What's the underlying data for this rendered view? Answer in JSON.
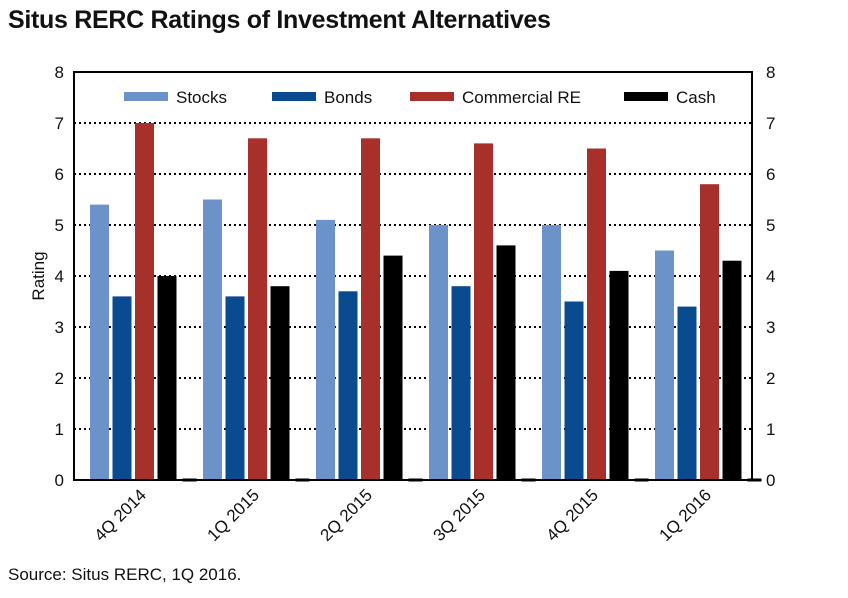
{
  "title": "Situs RERC Ratings of Investment Alternatives",
  "source": "Source: Situs RERC, 1Q 2016.",
  "colors": {
    "Stocks": "#6b93c9",
    "Bonds": "#0a4a8f",
    "Commercial RE": "#a8302a",
    "Cash": "#000000"
  },
  "chart_data": {
    "type": "bar",
    "title": "Situs RERC Ratings of Investment Alternatives",
    "xlabel": "",
    "ylabel": "Rating",
    "ylim": [
      0,
      8
    ],
    "yticks": [
      0,
      1,
      2,
      3,
      4,
      5,
      6,
      7,
      8
    ],
    "grid": "horizontal dotted",
    "legend_position": "top",
    "categories": [
      "4Q 2014",
      "1Q 2015",
      "2Q 2015",
      "3Q 2015",
      "4Q 2015",
      "1Q 2016"
    ],
    "series": [
      {
        "name": "Stocks",
        "values": [
          5.4,
          5.5,
          5.1,
          5.0,
          5.0,
          4.5
        ]
      },
      {
        "name": "Bonds",
        "values": [
          3.6,
          3.6,
          3.7,
          3.8,
          3.5,
          3.4
        ]
      },
      {
        "name": "Commercial RE",
        "values": [
          7.0,
          6.7,
          6.7,
          6.6,
          6.5,
          5.8
        ]
      },
      {
        "name": "Cash",
        "values": [
          4.0,
          3.8,
          4.4,
          4.6,
          4.1,
          4.3
        ]
      }
    ]
  }
}
